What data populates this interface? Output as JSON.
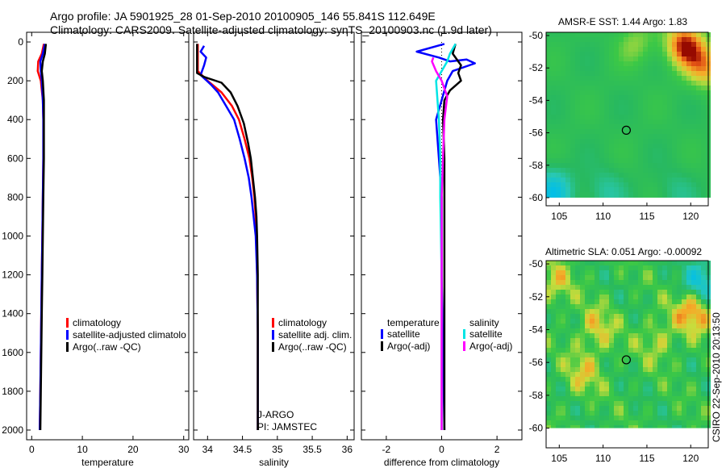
{
  "title": {
    "line1": "Argo profile: JA 5901925_28 01-Sep-2010 20100905_146 55.841S 112.649E",
    "line2": "Climatology: CARS2009. Satellite-adjusted climatology: synTS_20100903.nc (1.9d later)"
  },
  "stamp": "CSIRO 22-Sep-2010 20:13:50",
  "colors": {
    "climatology": "#ff0000",
    "satellite": "#0000ff",
    "argo": "#000000",
    "satellite_salinity": "#00e5e5",
    "argo_adj_salinity": "#ff00ff"
  },
  "chart_data": [
    {
      "type": "line",
      "id": "temperature",
      "xlabel": "temperature",
      "xlim": [
        -1,
        31
      ],
      "ylim": [
        0,
        2050
      ],
      "y_reversed": true,
      "xticks": [
        0,
        10,
        20,
        30
      ],
      "yticks": [
        0,
        200,
        400,
        600,
        800,
        1000,
        1200,
        1400,
        1600,
        1800,
        2000
      ],
      "legend": [
        "climatology",
        "satellite-adjusted climatolo",
        "Argo(..raw -QC)"
      ],
      "series": [
        {
          "name": "climatology",
          "color": "#ff0000",
          "points": [
            [
              2.4,
              10
            ],
            [
              2.0,
              60
            ],
            [
              1.3,
              100
            ],
            [
              1.2,
              150
            ],
            [
              1.8,
              200
            ],
            [
              2.2,
              300
            ],
            [
              2.3,
              400
            ],
            [
              2.3,
              600
            ],
            [
              2.2,
              800
            ],
            [
              2.1,
              1000
            ],
            [
              2.0,
              1200
            ],
            [
              1.9,
              1400
            ],
            [
              1.8,
              1600
            ],
            [
              1.7,
              1800
            ],
            [
              1.6,
              2000
            ]
          ]
        },
        {
          "name": "satellite-adjusted climatology",
          "color": "#0000ff",
          "points": [
            [
              2.6,
              10
            ],
            [
              2.2,
              60
            ],
            [
              1.7,
              100
            ],
            [
              1.8,
              150
            ],
            [
              2.0,
              200
            ],
            [
              2.2,
              300
            ],
            [
              2.3,
              400
            ],
            [
              2.3,
              600
            ],
            [
              2.2,
              800
            ],
            [
              2.1,
              1000
            ],
            [
              2.0,
              1200
            ],
            [
              1.9,
              1400
            ],
            [
              1.8,
              1600
            ],
            [
              1.7,
              1800
            ],
            [
              1.6,
              2000
            ]
          ]
        },
        {
          "name": "Argo(..raw -QC)",
          "color": "#000000",
          "points": [
            [
              2.8,
              10
            ],
            [
              2.6,
              60
            ],
            [
              2.2,
              100
            ],
            [
              2.0,
              150
            ],
            [
              2.2,
              200
            ],
            [
              2.4,
              300
            ],
            [
              2.4,
              400
            ],
            [
              2.4,
              600
            ],
            [
              2.3,
              800
            ],
            [
              2.2,
              1000
            ],
            [
              2.1,
              1200
            ],
            [
              2.0,
              1400
            ],
            [
              1.9,
              1600
            ],
            [
              1.8,
              1800
            ],
            [
              1.7,
              2000
            ]
          ]
        }
      ]
    },
    {
      "type": "line",
      "id": "salinity",
      "xlabel": "salinity",
      "xlim": [
        33.8,
        36.1
      ],
      "ylim": [
        0,
        2050
      ],
      "y_reversed": true,
      "xticks": [
        34,
        34.5,
        35,
        35.5,
        36
      ],
      "legend": [
        "climatology",
        "satellite adj. clim.",
        "Argo(..raw -QC)"
      ],
      "annotations": [
        "J-ARGO",
        "PI: JAMSTEC"
      ],
      "series": [
        {
          "name": "climatology",
          "color": "#ff0000",
          "points": [
            [
              33.86,
              10
            ],
            [
              33.86,
              150
            ],
            [
              34.0,
              200
            ],
            [
              34.2,
              260
            ],
            [
              34.35,
              330
            ],
            [
              34.45,
              400
            ],
            [
              34.53,
              500
            ],
            [
              34.6,
              600
            ],
            [
              34.64,
              700
            ],
            [
              34.67,
              800
            ],
            [
              34.69,
              900
            ],
            [
              34.7,
              1000
            ],
            [
              34.71,
              1200
            ],
            [
              34.72,
              1500
            ],
            [
              34.72,
              1800
            ],
            [
              34.72,
              2000
            ]
          ]
        },
        {
          "name": "satellite adj. clim.",
          "color": "#0000ff",
          "points": [
            [
              33.95,
              20
            ],
            [
              33.9,
              50
            ],
            [
              33.98,
              80
            ],
            [
              33.95,
              120
            ],
            [
              33.9,
              170
            ],
            [
              34.05,
              220
            ],
            [
              34.15,
              260
            ],
            [
              34.25,
              320
            ],
            [
              34.38,
              400
            ],
            [
              34.46,
              500
            ],
            [
              34.53,
              600
            ],
            [
              34.59,
              700
            ],
            [
              34.63,
              800
            ],
            [
              34.66,
              900
            ],
            [
              34.69,
              1000
            ],
            [
              34.71,
              1200
            ],
            [
              34.72,
              1500
            ],
            [
              34.72,
              1800
            ],
            [
              34.72,
              2000
            ]
          ]
        },
        {
          "name": "Argo(..raw -QC)",
          "color": "#000000",
          "points": [
            [
              33.85,
              10
            ],
            [
              33.85,
              160
            ],
            [
              33.95,
              180
            ],
            [
              34.2,
              210
            ],
            [
              34.33,
              260
            ],
            [
              34.43,
              330
            ],
            [
              34.52,
              420
            ],
            [
              34.58,
              520
            ],
            [
              34.62,
              600
            ],
            [
              34.65,
              700
            ],
            [
              34.68,
              800
            ],
            [
              34.7,
              900
            ],
            [
              34.71,
              1000
            ],
            [
              34.72,
              1200
            ],
            [
              34.72,
              1500
            ],
            [
              34.72,
              1800
            ],
            [
              34.72,
              2000
            ]
          ]
        }
      ]
    },
    {
      "type": "line",
      "id": "difference",
      "xlabel": "difference from climatology",
      "xlim": [
        -2.9,
        2.9
      ],
      "ylim": [
        0,
        2050
      ],
      "y_reversed": true,
      "xticks": [
        -2,
        0,
        2
      ],
      "legend_groups": [
        {
          "title": "temperature",
          "entries": [
            "satellite",
            "Argo(-adj)"
          ]
        },
        {
          "title": "salinity",
          "entries": [
            "satellite",
            "Argo(-adj)"
          ]
        }
      ],
      "series": [
        {
          "name": "temperature satellite",
          "color": "#0000ff",
          "points": [
            [
              0.1,
              10
            ],
            [
              -0.9,
              50
            ],
            [
              -0.1,
              80
            ],
            [
              0.3,
              100
            ],
            [
              0.9,
              90
            ],
            [
              1.2,
              110
            ],
            [
              0.4,
              150
            ],
            [
              0.2,
              200
            ],
            [
              0.0,
              300
            ],
            [
              -0.2,
              400
            ],
            [
              -0.1,
              600
            ],
            [
              0.0,
              800
            ],
            [
              0.0,
              1200
            ],
            [
              0.1,
              2000
            ]
          ]
        },
        {
          "name": "temperature Argo(-adj)",
          "color": "#000000",
          "points": [
            [
              0.5,
              10
            ],
            [
              0.4,
              60
            ],
            [
              0.7,
              120
            ],
            [
              0.6,
              160
            ],
            [
              0.7,
              200
            ],
            [
              0.3,
              250
            ],
            [
              0.1,
              300
            ],
            [
              0.05,
              400
            ],
            [
              0.1,
              600
            ],
            [
              0.1,
              800
            ],
            [
              0.1,
              1200
            ],
            [
              0.1,
              2000
            ]
          ]
        },
        {
          "name": "salinity satellite",
          "color": "#00e5e5",
          "points": [
            [
              0.5,
              10
            ],
            [
              0.3,
              60
            ],
            [
              0.2,
              100
            ],
            [
              0.0,
              150
            ],
            [
              -0.2,
              200
            ],
            [
              -0.1,
              400
            ],
            [
              -0.05,
              600
            ],
            [
              -0.05,
              800
            ],
            [
              0.0,
              1200
            ],
            [
              0.0,
              2000
            ]
          ]
        },
        {
          "name": "salinity Argo(-adj)",
          "color": "#ff00ff",
          "points": [
            [
              -0.3,
              80
            ],
            [
              -0.35,
              100
            ],
            [
              -0.2,
              150
            ],
            [
              0.0,
              200
            ],
            [
              0.2,
              280
            ],
            [
              0.1,
              400
            ],
            [
              0.05,
              600
            ],
            [
              0.0,
              800
            ],
            [
              0.0,
              1200
            ],
            [
              0.0,
              2000
            ]
          ]
        }
      ]
    },
    {
      "type": "heatmap",
      "id": "sst",
      "title": "AMSR-E SST: 1.44 Argo: 1.83",
      "xlim": [
        103.5,
        122
      ],
      "ylim": [
        -60.5,
        -49.8
      ],
      "xticks": [
        105,
        110,
        115,
        120
      ],
      "yticks": [
        -50,
        -52,
        -54,
        -56,
        -58,
        -60
      ],
      "data_ylim": [
        -60,
        -49.8
      ],
      "profile_marker": [
        112.649,
        -55.841
      ],
      "hotspots": [
        {
          "center": [
            119,
            -50.4
          ],
          "strength": 1.0
        },
        {
          "center": [
            121.5,
            -51.8
          ],
          "strength": 0.7
        },
        {
          "center": [
            113.5,
            -50.3
          ],
          "strength": 0.35
        },
        {
          "center": [
            104,
            -59.5
          ],
          "strength": -0.8
        },
        {
          "center": [
            110,
            -59.5
          ],
          "strength": -0.35
        },
        {
          "center": [
            118,
            -59.5
          ],
          "strength": -0.25
        }
      ]
    },
    {
      "type": "heatmap",
      "id": "sla",
      "title": "Altimetric SLA: 0.051 Argo: -0.00092",
      "xlim": [
        103.5,
        122
      ],
      "ylim": [
        -61.2,
        -49.8
      ],
      "xticks": [
        105,
        110,
        115,
        120
      ],
      "yticks": [
        -50,
        -52,
        -54,
        -56,
        -58,
        -60
      ],
      "data_ylim": [
        -60,
        -49.8
      ],
      "profile_marker": [
        112.649,
        -55.841
      ],
      "hotspots": [
        {
          "center": [
            121.0,
            -51.0
          ],
          "strength": -0.9
        },
        {
          "center": [
            120.2,
            -52.6
          ],
          "strength": 0.9
        },
        {
          "center": [
            109.0,
            -53.8
          ],
          "strength": 0.5
        },
        {
          "center": [
            107.5,
            -56.5
          ],
          "strength": 0.45
        },
        {
          "center": [
            116.0,
            -54.5
          ],
          "strength": 0.4
        },
        {
          "center": [
            104.2,
            -51.0
          ],
          "strength": 0.45
        }
      ]
    }
  ]
}
